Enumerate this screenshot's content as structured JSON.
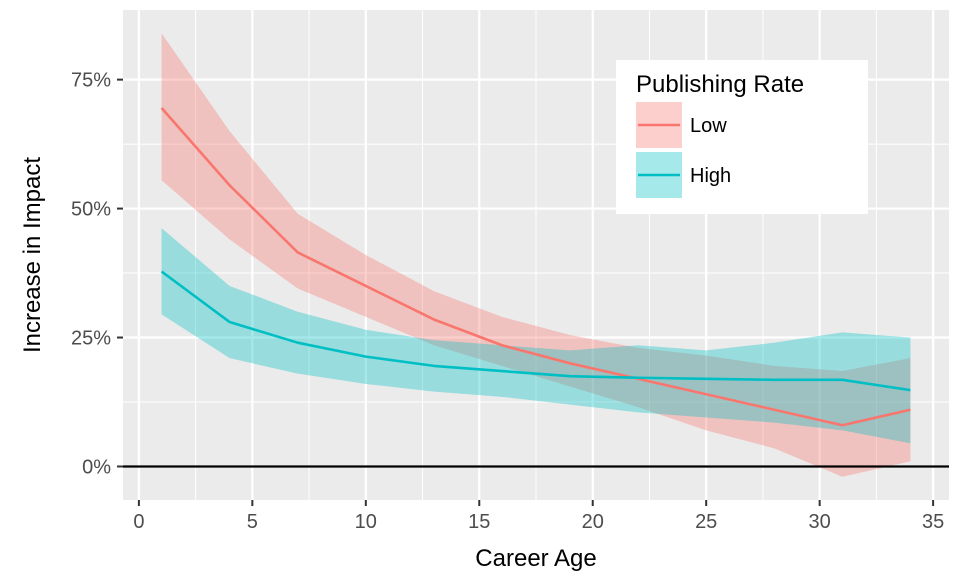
{
  "chart_data": {
    "type": "line",
    "xlabel": "Career Age",
    "ylabel": "Increase in Impact",
    "xlim": [
      -0.7,
      35.7
    ],
    "ylim": [
      -0.065,
      0.885
    ],
    "x_ticks": [
      0,
      5,
      10,
      15,
      20,
      25,
      30,
      35
    ],
    "x_tick_labels": [
      "0",
      "5",
      "10",
      "15",
      "20",
      "25",
      "30",
      "35"
    ],
    "y_ticks": [
      0,
      0.25,
      0.5,
      0.75
    ],
    "y_tick_labels": [
      "0%",
      "25%",
      "50%",
      "75%"
    ],
    "reference_line_y": 0,
    "grid": true,
    "background": "#ebebeb",
    "legend": {
      "title": "Publishing Rate",
      "placement": "top-right"
    },
    "x": [
      1,
      4,
      7,
      10,
      13,
      16,
      19,
      22,
      25,
      28,
      31,
      34
    ],
    "series": [
      {
        "name": "Low",
        "color": "#F8766D",
        "fill": "#F8766D",
        "values": [
          0.695,
          0.545,
          0.415,
          0.35,
          0.285,
          0.235,
          0.2,
          0.17,
          0.14,
          0.11,
          0.08,
          0.11
        ],
        "lower": [
          0.555,
          0.44,
          0.345,
          0.29,
          0.235,
          0.195,
          0.155,
          0.115,
          0.07,
          0.035,
          -0.02,
          0.01
        ],
        "upper": [
          0.84,
          0.65,
          0.49,
          0.41,
          0.34,
          0.29,
          0.255,
          0.23,
          0.215,
          0.195,
          0.185,
          0.21
        ]
      },
      {
        "name": "High",
        "color": "#00BFC4",
        "fill": "#00BFC4",
        "values": [
          0.378,
          0.28,
          0.24,
          0.213,
          0.195,
          0.185,
          0.175,
          0.172,
          0.17,
          0.168,
          0.168,
          0.148
        ],
        "lower": [
          0.295,
          0.21,
          0.18,
          0.16,
          0.145,
          0.135,
          0.12,
          0.105,
          0.095,
          0.085,
          0.07,
          0.045
        ],
        "upper": [
          0.462,
          0.35,
          0.3,
          0.265,
          0.245,
          0.235,
          0.225,
          0.235,
          0.225,
          0.24,
          0.26,
          0.25
        ]
      }
    ]
  }
}
